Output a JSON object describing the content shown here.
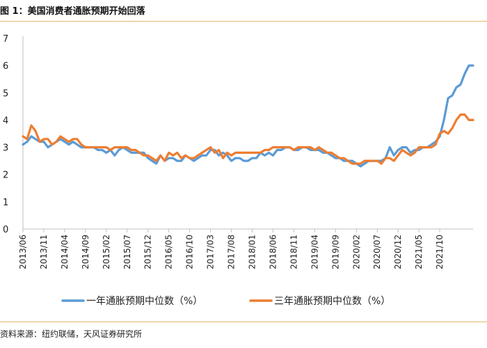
{
  "header": {
    "title": "图 1：美国消费者通胀预期开始回落"
  },
  "footer": {
    "source": "资料来源：纽约联储，天风证券研究所"
  },
  "colors": {
    "series1": "#5b9bd5",
    "series2": "#ed7d31",
    "rule": "#e3b66a",
    "axis": "#bfbfbf"
  },
  "chart_data": {
    "type": "line",
    "title": "图 1：美国消费者通胀预期开始回落",
    "xlabel": "",
    "ylabel": "",
    "ylim": [
      0,
      7
    ],
    "yticks": [
      "0",
      "1",
      "2",
      "3",
      "4",
      "5",
      "6",
      "7"
    ],
    "xticks": [
      "2013/06",
      "2013/11",
      "2014/04",
      "2014/09",
      "2015/02",
      "2015/07",
      "2015/12",
      "2016/05",
      "2016/10",
      "2017/03",
      "2017/08",
      "2018/01",
      "2018/06",
      "2018/11",
      "2019/04",
      "2019/09",
      "2020/02",
      "2020/07",
      "2020/12",
      "2021/05",
      "2021/10"
    ],
    "x_start": "2013/06",
    "x_end": "2021/12",
    "grid": false,
    "legend_position": "bottom",
    "series": [
      {
        "name": "一年通胀预期中位数（%）",
        "color": "#5b9bd5",
        "values": [
          3.1,
          3.2,
          3.4,
          3.3,
          3.2,
          3.2,
          3.0,
          3.1,
          3.2,
          3.3,
          3.2,
          3.1,
          3.2,
          3.1,
          3.0,
          3.0,
          3.0,
          3.0,
          2.9,
          2.9,
          2.8,
          2.9,
          2.7,
          2.9,
          3.0,
          2.9,
          2.8,
          2.8,
          2.8,
          2.8,
          2.6,
          2.5,
          2.4,
          2.7,
          2.5,
          2.6,
          2.6,
          2.5,
          2.5,
          2.7,
          2.6,
          2.5,
          2.6,
          2.7,
          2.7,
          2.9,
          2.9,
          2.7,
          2.8,
          2.7,
          2.5,
          2.6,
          2.6,
          2.5,
          2.5,
          2.6,
          2.6,
          2.8,
          2.7,
          2.8,
          2.7,
          2.9,
          2.9,
          3.0,
          3.0,
          2.9,
          2.9,
          3.0,
          3.0,
          2.9,
          2.9,
          2.9,
          2.8,
          2.8,
          2.7,
          2.6,
          2.6,
          2.5,
          2.5,
          2.5,
          2.4,
          2.3,
          2.4,
          2.5,
          2.5,
          2.5,
          2.5,
          2.6,
          3.0,
          2.7,
          2.9,
          3.0,
          3.0,
          2.8,
          2.9,
          2.9,
          3.0,
          3.0,
          3.1,
          3.2,
          3.4,
          4.0,
          4.8,
          4.9,
          5.2,
          5.3,
          5.7,
          6.0,
          6.0
        ]
      },
      {
        "name": "三年通胀预期中位数（%）",
        "color": "#ed7d31",
        "values": [
          3.4,
          3.3,
          3.8,
          3.6,
          3.2,
          3.3,
          3.3,
          3.1,
          3.2,
          3.4,
          3.3,
          3.2,
          3.3,
          3.3,
          3.1,
          3.0,
          3.0,
          3.0,
          3.0,
          3.0,
          3.0,
          2.9,
          3.0,
          3.0,
          3.0,
          3.0,
          2.9,
          2.9,
          2.8,
          2.7,
          2.7,
          2.6,
          2.5,
          2.7,
          2.5,
          2.8,
          2.7,
          2.8,
          2.6,
          2.7,
          2.6,
          2.6,
          2.7,
          2.8,
          2.9,
          3.0,
          2.8,
          2.9,
          2.6,
          2.8,
          2.7,
          2.8,
          2.8,
          2.8,
          2.8,
          2.8,
          2.8,
          2.8,
          2.9,
          2.9,
          3.0,
          3.0,
          3.0,
          3.0,
          3.0,
          2.9,
          3.0,
          3.0,
          3.0,
          3.0,
          2.9,
          3.0,
          2.9,
          2.8,
          2.8,
          2.7,
          2.6,
          2.6,
          2.5,
          2.4,
          2.4,
          2.4,
          2.5,
          2.5,
          2.5,
          2.5,
          2.4,
          2.6,
          2.6,
          2.5,
          2.7,
          2.9,
          2.8,
          2.7,
          2.8,
          3.0,
          3.0,
          3.0,
          3.0,
          3.1,
          3.5,
          3.6,
          3.5,
          3.7,
          4.0,
          4.2,
          4.2,
          4.0,
          4.0
        ]
      }
    ]
  }
}
